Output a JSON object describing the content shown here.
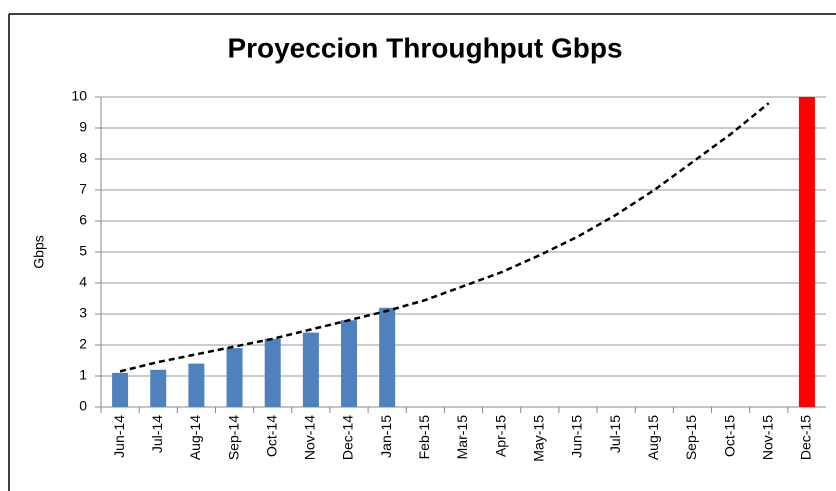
{
  "chart_data": {
    "type": "bar",
    "title": "Proyeccion Throughput Gbps",
    "y_label": "Gbps",
    "categories": [
      "Jun-14",
      "Jul-14",
      "Aug-14",
      "Sep-14",
      "Oct-14",
      "Nov-14",
      "Dec-14",
      "Jan-15",
      "Feb-15",
      "Mar-15",
      "Apr-15",
      "May-15",
      "Jun-15",
      "Jul-15",
      "Aug-15",
      "Sep-15",
      "Oct-15",
      "Nov-15",
      "Dec-15"
    ],
    "series": [
      {
        "color": "#4f81bd",
        "values": [
          1.1,
          1.2,
          1.4,
          1.9,
          2.2,
          2.4,
          2.8,
          3.2,
          null,
          null,
          null,
          null,
          null,
          null,
          null,
          null,
          null,
          null,
          null
        ]
      },
      {
        "color": "#ff0000",
        "values": [
          null,
          null,
          null,
          null,
          null,
          null,
          null,
          null,
          null,
          null,
          null,
          null,
          null,
          null,
          null,
          null,
          null,
          null,
          10
        ]
      },
      {
        "type": "line",
        "color": "#000000",
        "dashed": true,
        "values": [
          1.15,
          1.45,
          1.7,
          1.95,
          2.2,
          2.5,
          2.8,
          3.1,
          3.45,
          3.9,
          4.35,
          4.9,
          5.5,
          6.2,
          7.0,
          7.9,
          8.8,
          9.8,
          null
        ]
      }
    ],
    "ylim": [
      0,
      10
    ],
    "yticks": [
      0,
      1,
      2,
      3,
      4,
      5,
      6,
      7,
      8,
      9,
      10
    ],
    "grid": true
  }
}
